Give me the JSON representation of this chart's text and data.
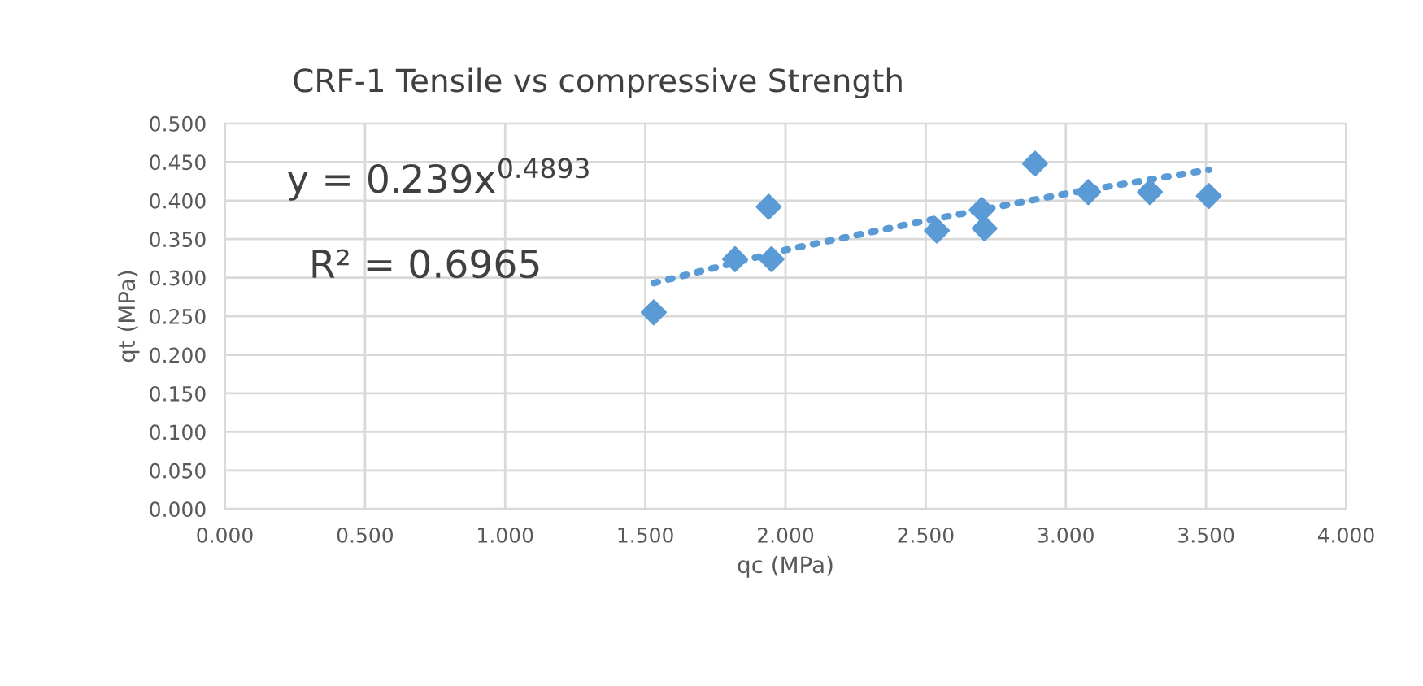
{
  "chart_data": {
    "type": "scatter",
    "title": "CRF-1 Tensile vs compressive Strength",
    "xlabel": "qc (MPa)",
    "ylabel": "qt (MPa)",
    "series": [
      {
        "color": "#5b9bd5",
        "marker": "diamond",
        "x": [
          1.53,
          1.82,
          1.94,
          1.95,
          2.54,
          2.7,
          2.71,
          2.89,
          3.08,
          3.3,
          3.51
        ],
        "values": [
          0.255,
          0.324,
          0.392,
          0.324,
          0.361,
          0.388,
          0.364,
          0.448,
          0.411,
          0.411,
          0.406
        ]
      },
      {
        "type": "line",
        "color": "#5b9bd5",
        "marker": "none",
        "line_style": "dotted",
        "x": [
          1.53,
          2.0,
          2.5,
          3.0,
          3.51
        ],
        "values": [
          0.293,
          0.336,
          0.374,
          0.409,
          0.44
        ]
      }
    ],
    "xlim": [
      0,
      4
    ],
    "ylim": [
      0,
      0.5
    ],
    "xticks": [
      {
        "value": 0,
        "label": "0.000"
      },
      {
        "value": 0.5,
        "label": "0.500"
      },
      {
        "value": 1,
        "label": "1.000"
      },
      {
        "value": 1.5,
        "label": "1.500"
      },
      {
        "value": 2,
        "label": "2.000"
      },
      {
        "value": 2.5,
        "label": "2.500"
      },
      {
        "value": 3,
        "label": "3.000"
      },
      {
        "value": 3.5,
        "label": "3.500"
      },
      {
        "value": 4,
        "label": "4.000"
      }
    ],
    "yticks": [
      {
        "value": 0,
        "label": "0.000"
      },
      {
        "value": 0.05,
        "label": "0.050"
      },
      {
        "value": 0.1,
        "label": "0.100"
      },
      {
        "value": 0.15,
        "label": "0.150"
      },
      {
        "value": 0.2,
        "label": "0.200"
      },
      {
        "value": 0.25,
        "label": "0.250"
      },
      {
        "value": 0.3,
        "label": "0.300"
      },
      {
        "value": 0.35,
        "label": "0.350"
      },
      {
        "value": 0.4,
        "label": "0.400"
      },
      {
        "value": 0.45,
        "label": "0.450"
      },
      {
        "value": 0.5,
        "label": "0.500"
      }
    ],
    "grid": true,
    "legend": false,
    "annotations": [
      "y = 0.239x$^{0.4893}$",
      "R² = 0.6965"
    ]
  }
}
